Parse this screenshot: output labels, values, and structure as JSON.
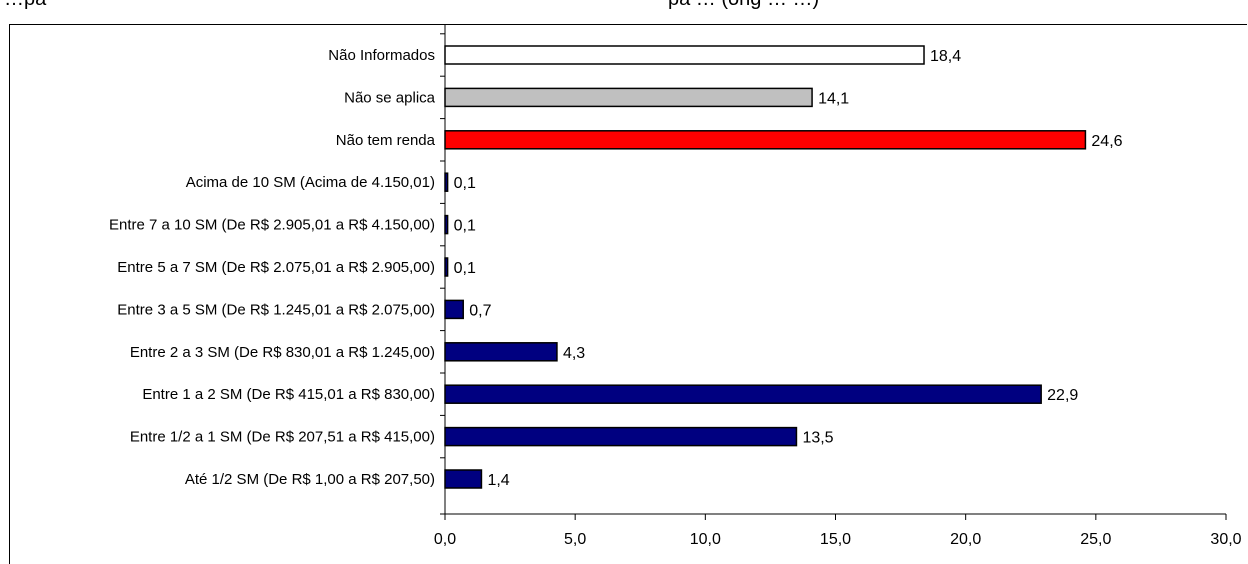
{
  "header": {
    "title_left": "…pa",
    "title_right": "pa … (ong … …)"
  },
  "chart_data": {
    "type": "bar",
    "orientation": "horizontal",
    "title": "",
    "xlabel": "",
    "ylabel": "",
    "xlim": [
      0,
      30
    ],
    "x_ticks": [
      "0,0",
      "5,0",
      "10,0",
      "15,0",
      "20,0",
      "25,0",
      "30,0"
    ],
    "x_tick_values": [
      0,
      5,
      10,
      15,
      20,
      25,
      30
    ],
    "grid": false,
    "legend": "none",
    "categories": [
      "Não Informados",
      "Não se aplica",
      "Não tem renda",
      "Acima de 10 SM (Acima de 4.150,01)",
      "Entre 7 a 10 SM (De R$ 2.905,01 a R$ 4.150,00)",
      "Entre 5 a 7 SM (De R$ 2.075,01 a R$ 2.905,00)",
      "Entre 3 a 5 SM (De R$ 1.245,01 a R$ 2.075,00)",
      "Entre 2 a 3 SM (De R$ 830,01 a R$ 1.245,00)",
      "Entre 1 a 2 SM (De R$ 415,01 a R$ 830,00)",
      "Entre 1/2 a 1 SM (De  R$ 207,51 a R$ 415,00)",
      "Até 1/2 SM (De R$ 1,00 a R$ 207,50)"
    ],
    "values": [
      18.4,
      14.1,
      24.6,
      0.1,
      0.1,
      0.1,
      0.7,
      4.3,
      22.9,
      13.5,
      1.4
    ],
    "value_labels": [
      "18,4",
      "14,1",
      "24,6",
      "0,1",
      "0,1",
      "0,1",
      "0,7",
      "4,3",
      "22,9",
      "13,5",
      "1,4"
    ],
    "colors": [
      "#ffffff",
      "#c0c0c0",
      "#ff0000",
      "#000080",
      "#000080",
      "#000080",
      "#000080",
      "#000080",
      "#000080",
      "#000080",
      "#000080"
    ]
  }
}
